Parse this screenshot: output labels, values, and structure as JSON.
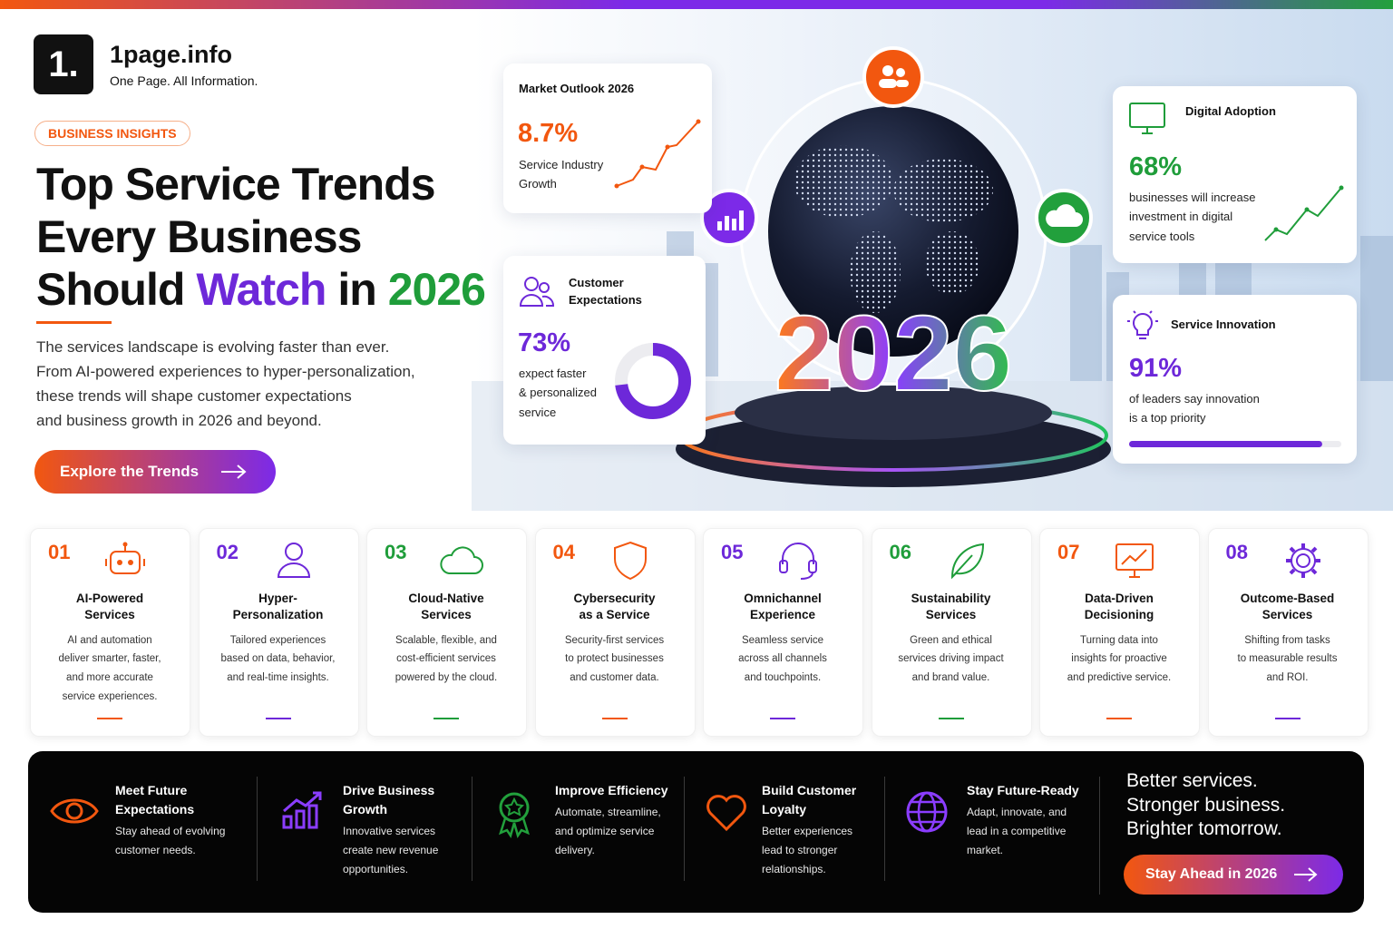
{
  "brand": {
    "mark": "1.",
    "name": "1page.info",
    "tagline": "One Page. All Information."
  },
  "badge": "BUSINESS INSIGHTS",
  "headline": {
    "line1": "Top Service Trends",
    "line2": "Every Business",
    "line3": [
      "Should",
      "Watch",
      "in",
      "2026"
    ]
  },
  "intro": [
    "The services landscape is evolving faster than ever.",
    "From AI-powered experiences to hyper-personalization,",
    "these trends will shape customer expectations",
    "and business growth in 2026 and beyond."
  ],
  "cta": "Explore the Trends",
  "hero": {
    "year": "2026"
  },
  "stats": [
    {
      "title": [
        "Market Outlook 2026"
      ],
      "label": "8.7%",
      "caption": [
        "Service Industry",
        "Growth"
      ]
    },
    {
      "title": [
        "Customer",
        "Expectations"
      ],
      "value": 73,
      "label": "73%",
      "caption": [
        "expect faster",
        "& personalized",
        "service"
      ]
    },
    {
      "title": [
        "Digital Adoption"
      ],
      "label": "68%",
      "caption": [
        "businesses will increase",
        "investment in digital",
        "service tools"
      ]
    },
    {
      "title": [
        "Service Innovation"
      ],
      "value": 91,
      "label": "91%",
      "caption": [
        "of leaders say innovation",
        "is a top priority"
      ]
    }
  ],
  "trends": [
    {
      "num": "01",
      "title": [
        "AI-Powered",
        "Services"
      ],
      "desc": [
        "AI and automation",
        "deliver smarter, faster,",
        "and more accurate",
        "service experiences."
      ]
    },
    {
      "num": "02",
      "title": [
        "Hyper-",
        "Personalization"
      ],
      "desc": [
        "Tailored experiences",
        "based on data, behavior,",
        "and real-time insights."
      ]
    },
    {
      "num": "03",
      "title": [
        "Cloud-Native",
        "Services"
      ],
      "desc": [
        "Scalable, flexible, and",
        "cost-efficient services",
        "powered by the cloud."
      ]
    },
    {
      "num": "04",
      "title": [
        "Cybersecurity",
        "as a Service"
      ],
      "desc": [
        "Security-first services",
        "to protect businesses",
        "and customer data."
      ]
    },
    {
      "num": "05",
      "title": [
        "Omnichannel",
        "Experience"
      ],
      "desc": [
        "Seamless service",
        "across all channels",
        "and touchpoints."
      ]
    },
    {
      "num": "06",
      "title": [
        "Sustainability",
        "Services"
      ],
      "desc": [
        "Green and ethical",
        "services driving impact",
        "and brand value."
      ]
    },
    {
      "num": "07",
      "title": [
        "Data-Driven",
        "Decisioning"
      ],
      "desc": [
        "Turning data into",
        "insights for proactive",
        "and predictive service."
      ]
    },
    {
      "num": "08",
      "title": [
        "Outcome-Based",
        "Services"
      ],
      "desc": [
        "Shifting from tasks",
        "to measurable results",
        "and ROI."
      ]
    }
  ],
  "benefits": [
    {
      "title": [
        "Meet Future",
        "Expectations"
      ],
      "desc": [
        "Stay ahead of evolving",
        "customer needs."
      ]
    },
    {
      "title": [
        "Drive Business",
        "Growth"
      ],
      "desc": [
        "Innovative services",
        "create new revenue",
        "opportunities."
      ]
    },
    {
      "title": [
        "Improve Efficiency"
      ],
      "desc": [
        "Automate, streamline,",
        "and optimize service",
        "delivery."
      ]
    },
    {
      "title": [
        "Build Customer",
        "Loyalty"
      ],
      "desc": [
        "Better experiences",
        "lead to stronger",
        "relationships."
      ]
    },
    {
      "title": [
        "Stay Future-Ready"
      ],
      "desc": [
        "Adapt, innovate, and",
        "lead in a competitive",
        "market."
      ]
    }
  ],
  "closing": {
    "lines": [
      "Better services.",
      "Stronger business.",
      "Brighter tomorrow."
    ],
    "cta": "Stay Ahead in 2026"
  }
}
